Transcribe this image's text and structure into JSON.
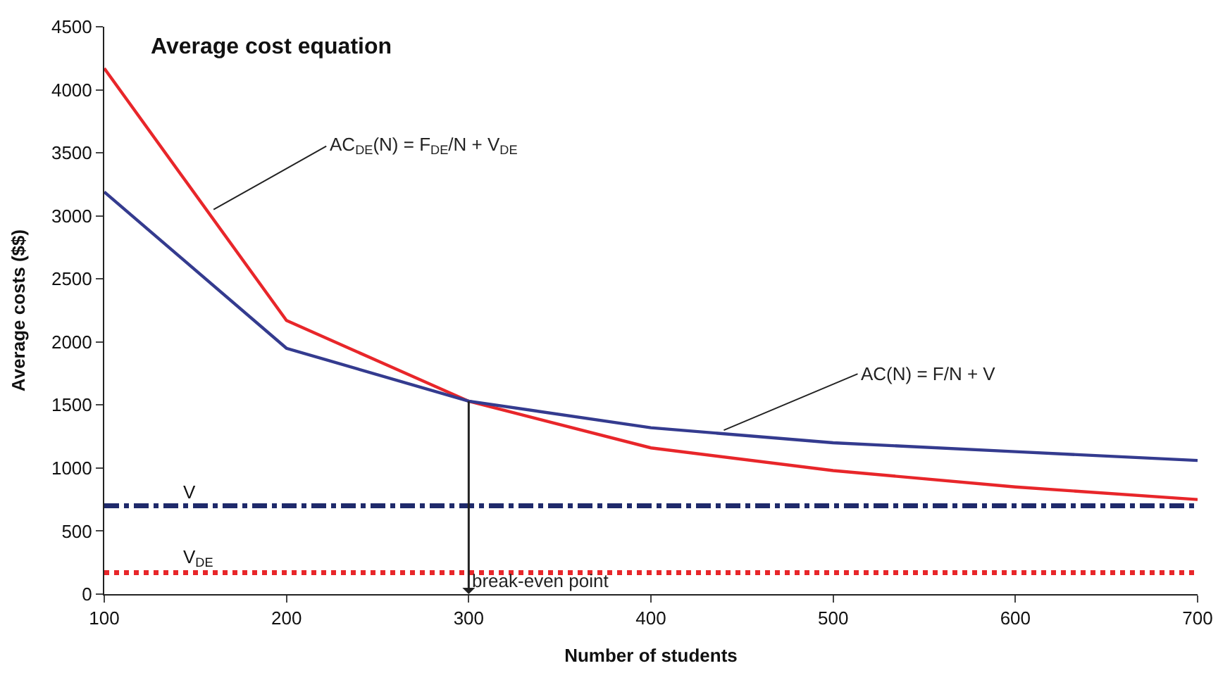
{
  "chart_data": {
    "type": "line",
    "title": "Average cost equation",
    "xlabel": "Number of students",
    "ylabel": "Average costs ($$)",
    "x": [
      100,
      200,
      300,
      400,
      500,
      600,
      700
    ],
    "series": [
      {
        "color": "#e8262a",
        "values": [
          4170,
          2170,
          1530,
          1160,
          980,
          850,
          750
        ]
      },
      {
        "color": "#343b8f",
        "values": [
          3190,
          1950,
          1530,
          1320,
          1200,
          1130,
          1060
        ]
      }
    ],
    "xlim": [
      100,
      700
    ],
    "xticks": [
      100,
      200,
      300,
      400,
      500,
      600,
      700
    ],
    "ylim": [
      0,
      4500
    ],
    "yticks": [
      0,
      500,
      1000,
      1500,
      2000,
      2500,
      3000,
      3500,
      4000,
      4500
    ],
    "ref_lines": [
      {
        "axis": "y",
        "value": 700,
        "label": "V",
        "color": "#1f2a6b",
        "line_style": "dashed"
      },
      {
        "axis": "y",
        "value": 170,
        "label": "V$_{DE}$",
        "color": "#e8262a",
        "line_style": "dotted"
      }
    ],
    "annotations": [
      {
        "text": "AC$_{DE}$(N) = F$_{DE}$/N + V$_{DE}$",
        "x": 160,
        "y": 3050
      },
      {
        "text": "AC(N) = F/N + V",
        "x": 440,
        "y": 1300
      },
      {
        "text": "break-even point",
        "x": 300,
        "y": 1530
      }
    ],
    "grid": false,
    "marker": "none",
    "line_style": "solid"
  }
}
